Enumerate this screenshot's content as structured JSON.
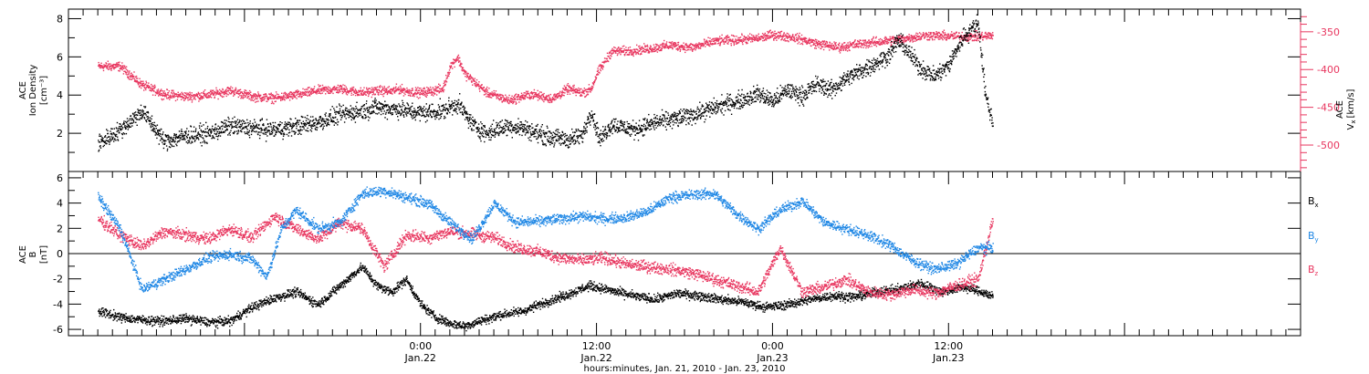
{
  "chart_data": [
    {
      "type": "scatter",
      "panel": "top",
      "ylabel_lines": [
        "ACE",
        "Ion Density",
        "[cm⁻³]"
      ],
      "ylim": [
        0,
        8.5
      ],
      "yticks": [
        2,
        4,
        6,
        8
      ],
      "yticks_minor": [
        1,
        3,
        5,
        7
      ],
      "right_ylabel_lines": [
        "ACE",
        "Vₓ [km/s]"
      ],
      "right_ylim": [
        -535,
        -320
      ],
      "right_yticks": [
        -350,
        -400,
        -450,
        -500
      ],
      "right_axis_color": "#e8365f",
      "x_unit": "hours since 00:00 Jan 21, 2010",
      "series": [
        {
          "role": "left-axis",
          "color": "#000000",
          "x": [
            2.0,
            3.5,
            5.0,
            6.5,
            8.0,
            9.5,
            11.0,
            12.5,
            14.0,
            15.5,
            17.0,
            18.5,
            20.0,
            21.0,
            22.0,
            22.5,
            23.0,
            24.0,
            25.5,
            26.5,
            27.5,
            28.5,
            29.0,
            30.0,
            31.0,
            32.0,
            33.0,
            34.0,
            35.0,
            35.6,
            36.2,
            37.0,
            38.5,
            40.0,
            41.5,
            43.0,
            44.5,
            46.0,
            47.0,
            48.0,
            49.0,
            50.0,
            51.0,
            52.0,
            53.0,
            54.0,
            55.0,
            56.0,
            56.5,
            57.0,
            58.0,
            59.0,
            60.0,
            60.5,
            61.0,
            62.0,
            62.5,
            63.0
          ],
          "y": [
            1.5,
            2.2,
            3.2,
            1.6,
            1.9,
            2.0,
            2.4,
            2.3,
            2.2,
            2.4,
            2.6,
            3.0,
            3.2,
            3.4,
            3.3,
            3.3,
            3.2,
            3.1,
            3.2,
            3.6,
            2.5,
            2.0,
            2.2,
            2.4,
            2.3,
            2.0,
            1.8,
            1.7,
            1.9,
            3.2,
            1.7,
            2.5,
            2.2,
            2.6,
            2.8,
            3.1,
            3.5,
            3.8,
            4.1,
            3.7,
            4.3,
            4.0,
            4.6,
            4.3,
            4.9,
            5.3,
            5.7,
            6.2,
            6.9,
            6.5,
            5.5,
            5.0,
            5.6,
            6.4,
            7.1,
            7.8,
            4.0,
            2.5
          ]
        },
        {
          "role": "right-axis",
          "color": "#e8365f",
          "x": [
            2.0,
            3.5,
            5.0,
            6.5,
            8.0,
            9.5,
            11.0,
            12.5,
            14.0,
            15.5,
            17.0,
            18.5,
            20.0,
            21.0,
            22.0,
            22.5,
            23.0,
            24.0,
            25.5,
            26.0,
            26.5,
            27.0,
            28.5,
            30.0,
            31.5,
            33.0,
            34.0,
            35.0,
            35.6,
            36.0,
            36.5,
            37.0,
            38.0,
            39.5,
            41.0,
            42.5,
            44.0,
            45.5,
            47.0,
            48.0,
            49.5,
            51.0,
            52.5,
            54.0,
            55.5,
            57.0,
            58.5,
            60.0,
            61.5,
            62.5,
            63.0
          ],
          "y": [
            -395,
            -395,
            -420,
            -432,
            -435,
            -433,
            -427,
            -435,
            -437,
            -433,
            -427,
            -425,
            -430,
            -427,
            -428,
            -425,
            -428,
            -430,
            -425,
            -395,
            -383,
            -405,
            -430,
            -440,
            -432,
            -438,
            -425,
            -430,
            -425,
            -405,
            -390,
            -375,
            -375,
            -372,
            -367,
            -370,
            -362,
            -360,
            -358,
            -353,
            -357,
            -365,
            -370,
            -365,
            -362,
            -358,
            -354,
            -355,
            -356,
            -355,
            -354
          ]
        }
      ]
    },
    {
      "type": "scatter",
      "panel": "bottom",
      "ylabel_lines": [
        "ACE",
        "B",
        "[nT]"
      ],
      "ylim": [
        -6.5,
        6.5
      ],
      "yticks": [
        -6,
        -4,
        -2,
        0,
        2,
        4,
        6
      ],
      "yticks_minor": [
        -5,
        -3,
        -1,
        1,
        3,
        5
      ],
      "zero_line": true,
      "x_unit": "hours since 00:00 Jan 21, 2010",
      "series": [
        {
          "name": "Bₓ",
          "color": "#000000",
          "x": [
            2.0,
            3.5,
            5.0,
            6.5,
            8.0,
            9.5,
            11.0,
            12.5,
            14.0,
            15.5,
            17.0,
            18.5,
            20.0,
            21.0,
            22.0,
            23.0,
            24.0,
            25.0,
            26.0,
            27.0,
            28.0,
            29.5,
            31.0,
            32.5,
            34.0,
            35.5,
            37.0,
            38.5,
            40.0,
            41.5,
            43.0,
            44.5,
            46.0,
            47.5,
            49.0,
            50.5,
            52.0,
            53.5,
            55.0,
            56.5,
            58.0,
            59.5,
            61.0,
            62.5,
            63.0
          ],
          "y": [
            -4.5,
            -5.0,
            -5.2,
            -5.3,
            -5.1,
            -5.4,
            -5.3,
            -4.2,
            -3.5,
            -3.0,
            -4.0,
            -2.5,
            -1.0,
            -2.5,
            -3.0,
            -2.0,
            -4.0,
            -5.0,
            -5.5,
            -5.7,
            -5.3,
            -4.8,
            -4.5,
            -3.8,
            -3.2,
            -2.5,
            -2.9,
            -3.3,
            -3.6,
            -3.1,
            -3.3,
            -3.6,
            -3.8,
            -4.2,
            -4.0,
            -3.6,
            -3.3,
            -3.4,
            -3.0,
            -2.8,
            -2.3,
            -3.0,
            -2.6,
            -3.1,
            -3.4
          ]
        },
        {
          "name": "Bᵧ",
          "color": "#1f87e5",
          "x": [
            2.0,
            3.5,
            5.0,
            6.5,
            8.0,
            9.5,
            11.0,
            12.5,
            13.5,
            14.5,
            15.5,
            17.0,
            18.5,
            20.0,
            21.5,
            23.0,
            24.5,
            26.0,
            27.5,
            29.0,
            30.5,
            32.0,
            33.5,
            35.0,
            36.5,
            38.0,
            39.5,
            41.0,
            42.5,
            44.0,
            45.5,
            47.0,
            48.5,
            50.0,
            51.5,
            53.0,
            54.5,
            56.0,
            57.5,
            59.0,
            60.5,
            62.0,
            63.0
          ],
          "y": [
            4.5,
            2.0,
            -2.8,
            -2.0,
            -1.2,
            -0.3,
            0.0,
            -0.4,
            -1.8,
            2.0,
            3.5,
            2.0,
            2.5,
            4.8,
            5.0,
            4.5,
            4.0,
            2.5,
            1.2,
            4.0,
            2.5,
            2.6,
            2.8,
            3.0,
            2.8,
            2.9,
            3.4,
            4.5,
            4.7,
            4.8,
            3.2,
            2.0,
            3.5,
            4.2,
            2.5,
            2.0,
            1.5,
            0.7,
            -0.5,
            -1.2,
            -0.8,
            0.5,
            0.5
          ]
        },
        {
          "name": "B_z",
          "color": "#e8365f",
          "x": [
            2.0,
            3.5,
            5.0,
            6.5,
            8.0,
            9.5,
            11.0,
            12.5,
            14.0,
            15.5,
            17.0,
            18.5,
            20.0,
            21.5,
            23.0,
            24.5,
            26.0,
            27.5,
            29.0,
            30.5,
            32.0,
            33.5,
            35.0,
            36.5,
            38.0,
            39.5,
            41.0,
            42.5,
            44.0,
            45.5,
            47.0,
            48.5,
            50.0,
            51.5,
            53.0,
            54.5,
            56.0,
            57.5,
            59.0,
            60.5,
            62.0,
            63.0
          ],
          "y": [
            2.8,
            1.5,
            0.6,
            1.8,
            1.5,
            1.2,
            2.0,
            1.3,
            3.0,
            2.0,
            1.2,
            2.5,
            2.0,
            -1.0,
            1.5,
            1.3,
            1.8,
            1.6,
            1.3,
            0.5,
            0.2,
            -0.3,
            -0.5,
            -0.3,
            -0.8,
            -1.0,
            -1.2,
            -1.5,
            -2.0,
            -2.5,
            -3.0,
            0.5,
            -3.0,
            -2.6,
            -2.0,
            -3.0,
            -3.2,
            -2.8,
            -3.1,
            -2.5,
            -2.0,
            2.8
          ]
        }
      ]
    }
  ],
  "x_axis": {
    "xlim": [
      0,
      84
    ],
    "label": "hours:minutes, Jan. 21, 2010 - Jan. 23, 2010",
    "ticks": [
      {
        "hour": 24,
        "time": "0:00",
        "date": "Jan.22"
      },
      {
        "hour": 36,
        "time": "12:00",
        "date": "Jan.22"
      },
      {
        "hour": 48,
        "time": "0:00",
        "date": "Jan.23"
      },
      {
        "hour": 60,
        "time": "12:00",
        "date": "Jan.23"
      }
    ],
    "minor_step_hours": 1
  },
  "legend": {
    "placement": "right",
    "entries": [
      {
        "main": "B",
        "sub": "x",
        "color": "#000000"
      },
      {
        "main": "B",
        "sub": "y",
        "color": "#1f87e5"
      },
      {
        "main": "B",
        "sub": "z",
        "color": "#e8365f"
      }
    ]
  },
  "right_axis_label": {
    "line1": "ACE",
    "line2_main": "V",
    "line2_sub": "x",
    "line2_unit": "[km/s]"
  },
  "left_labels": {
    "top": [
      "ACE",
      "Ion Density",
      "[cm⁻³]"
    ],
    "bottom": [
      "ACE",
      "B",
      "[nT]"
    ]
  }
}
